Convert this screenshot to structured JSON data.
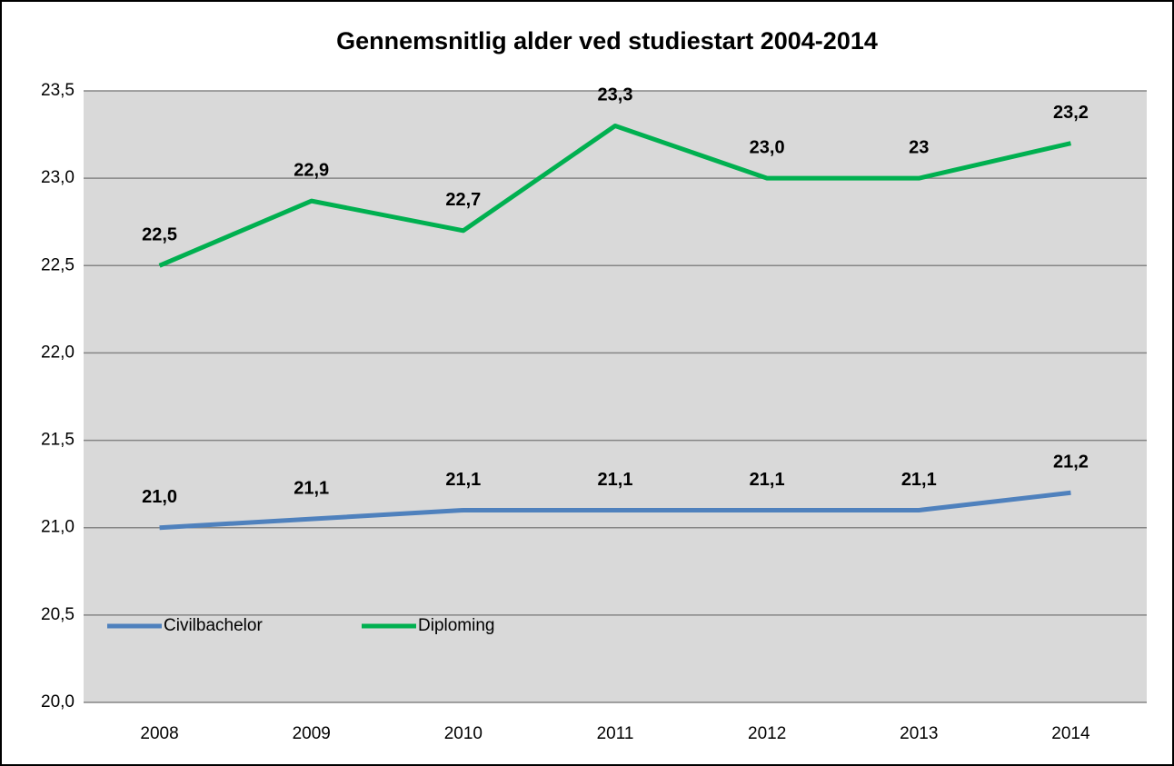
{
  "chart_data": {
    "type": "line",
    "title": "Gennemsnitlig alder ved studiestart 2004-2014",
    "categories": [
      "2008",
      "2009",
      "2010",
      "2011",
      "2012",
      "2013",
      "2014"
    ],
    "series": [
      {
        "name": "Civilbachelor",
        "color": "#4f81bd",
        "values": [
          21.0,
          21.05,
          21.1,
          21.1,
          21.1,
          21.1,
          21.2
        ],
        "value_labels": [
          "21,0",
          "21,1",
          "21,1",
          "21,1",
          "21,1",
          "21,1",
          "21,2"
        ]
      },
      {
        "name": "Diploming",
        "color": "#00b050",
        "values": [
          22.5,
          22.87,
          22.7,
          23.3,
          23.0,
          23.0,
          23.2
        ],
        "value_labels": [
          "22,5",
          "22,9",
          "22,7",
          "23,3",
          "23,0",
          "23",
          "23,2"
        ]
      }
    ],
    "ylim": [
      20,
      23.5
    ],
    "yticks": [
      {
        "value": 20,
        "label": "20,0"
      },
      {
        "value": 20.5,
        "label": "20,5"
      },
      {
        "value": 21,
        "label": "21,0"
      },
      {
        "value": 21.5,
        "label": "21,5"
      },
      {
        "value": 22,
        "label": "22,0"
      },
      {
        "value": 22.5,
        "label": "22,5"
      },
      {
        "value": 23,
        "label": "23,0"
      },
      {
        "value": 23.5,
        "label": "23,5"
      }
    ],
    "grid": true,
    "legend": "lower left"
  }
}
